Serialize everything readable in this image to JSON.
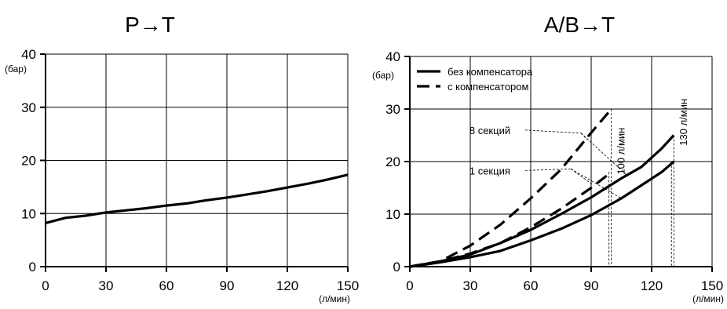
{
  "chart_data": [
    {
      "type": "line",
      "title": "P→T",
      "xlabel": "",
      "ylabel": "",
      "x_unit": "(л/мин)",
      "y_unit": "(бар)",
      "xlim": [
        0,
        150
      ],
      "ylim": [
        0,
        40
      ],
      "xticks": [
        0,
        30,
        60,
        90,
        120,
        150
      ],
      "yticks": [
        0,
        10,
        20,
        30,
        40
      ],
      "grid": true,
      "series": [
        {
          "style": "solid",
          "x": [
            0,
            10,
            20,
            30,
            40,
            50,
            60,
            70,
            80,
            90,
            100,
            110,
            120,
            130,
            140,
            150
          ],
          "y": [
            8.2,
            9.2,
            9.6,
            10.2,
            10.6,
            11.0,
            11.5,
            11.9,
            12.5,
            13.0,
            13.6,
            14.2,
            14.9,
            15.6,
            16.4,
            17.3
          ]
        }
      ]
    },
    {
      "type": "line",
      "title": "A/B→T",
      "xlabel": "",
      "ylabel": "",
      "x_unit": "(л/мин)",
      "y_unit": "(бар)",
      "xlim": [
        0,
        150
      ],
      "ylim": [
        0,
        40
      ],
      "xticks": [
        0,
        30,
        60,
        90,
        120,
        150
      ],
      "yticks": [
        0,
        10,
        20,
        30,
        40
      ],
      "grid": true,
      "legend": {
        "position": "top-left",
        "entries": [
          {
            "label": "без компенсатора",
            "style": "solid"
          },
          {
            "label": "с компенсатором",
            "style": "dashed"
          }
        ]
      },
      "series": [
        {
          "style": "dashed",
          "x": [
            0,
            15,
            30,
            45,
            60,
            75,
            90,
            100
          ],
          "y": [
            0,
            1.0,
            4.0,
            8.0,
            13.0,
            18.5,
            25.5,
            30.0
          ]
        },
        {
          "style": "dashed",
          "x": [
            0,
            15,
            30,
            45,
            60,
            75,
            90,
            100
          ],
          "y": [
            0,
            1.0,
            2.5,
            4.5,
            7.5,
            11.0,
            15.0,
            18.0
          ]
        },
        {
          "style": "solid",
          "x": [
            0,
            15,
            30,
            45,
            60,
            75,
            90,
            105,
            115,
            125,
            131
          ],
          "y": [
            0,
            1.0,
            2.3,
            4.5,
            7.0,
            10.0,
            13.2,
            16.8,
            19.0,
            22.5,
            25.0
          ]
        },
        {
          "style": "solid",
          "x": [
            0,
            15,
            30,
            45,
            60,
            75,
            90,
            105,
            115,
            125,
            131
          ],
          "y": [
            0,
            0.8,
            1.8,
            3.0,
            5.0,
            7.2,
            9.8,
            13.0,
            15.5,
            18.0,
            20.0
          ]
        }
      ],
      "annotations": [
        {
          "text": "8 секций",
          "x": 28,
          "y": 26
        },
        {
          "text": "1 секция",
          "x": 28,
          "y": 18.3
        },
        {
          "text": "100 л/мин",
          "x": 100
        },
        {
          "text": "130 л/мин",
          "x": 131
        }
      ]
    }
  ]
}
